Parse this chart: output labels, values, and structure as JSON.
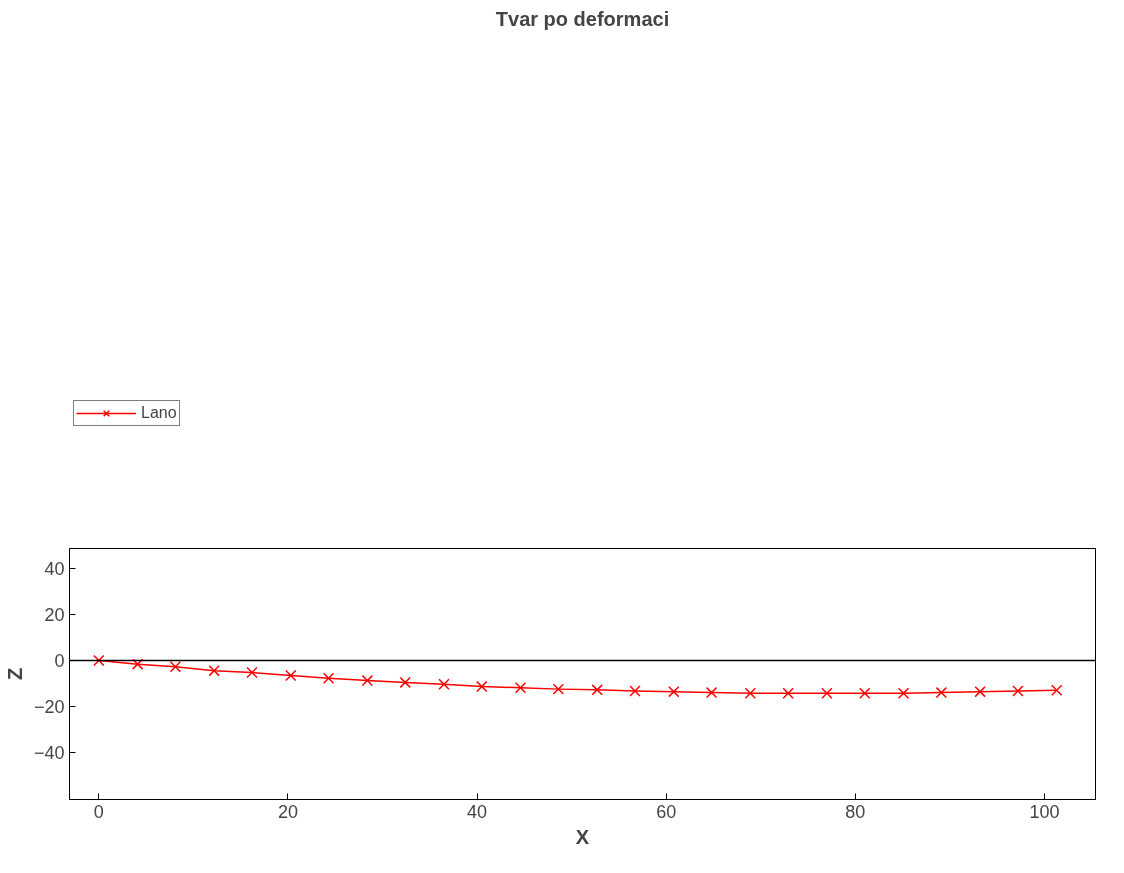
{
  "chart_data": {
    "type": "line",
    "title": "Tvar po deformaci",
    "xlabel": "X",
    "ylabel": "Z",
    "x": [
      0,
      4.1,
      8.1,
      12.2,
      16.2,
      20.3,
      24.3,
      28.4,
      32.4,
      36.5,
      40.5,
      44.6,
      48.6,
      52.7,
      56.7,
      60.8,
      64.8,
      68.9,
      72.9,
      77,
      81,
      85.1,
      89.1,
      93.2,
      97.2,
      101.3
    ],
    "series": [
      {
        "name": "Lano",
        "color": "#ff0000",
        "values": [
          0,
          -1.6,
          -2.7,
          -4.4,
          -5.2,
          -6.5,
          -7.7,
          -8.7,
          -9.5,
          -10.3,
          -11.3,
          -11.8,
          -12.4,
          -12.7,
          -13.2,
          -13.5,
          -13.9,
          -14.2,
          -14.2,
          -14.2,
          -14.2,
          -14.2,
          -13.9,
          -13.5,
          -13.2,
          -12.9
        ]
      }
    ],
    "xlim": [
      -3.1,
      105.4
    ],
    "ylim": [
      -60.2,
      48.5
    ],
    "xticks": [
      0,
      20,
      40,
      60,
      80,
      100
    ],
    "yticks": [
      -40,
      -20,
      0,
      20,
      40
    ],
    "ref_lines": [
      {
        "axis": "y",
        "value": 0,
        "color": "#000000"
      }
    ],
    "grid": false,
    "legend": "top left",
    "marker": "cross",
    "line_style": "solid"
  }
}
